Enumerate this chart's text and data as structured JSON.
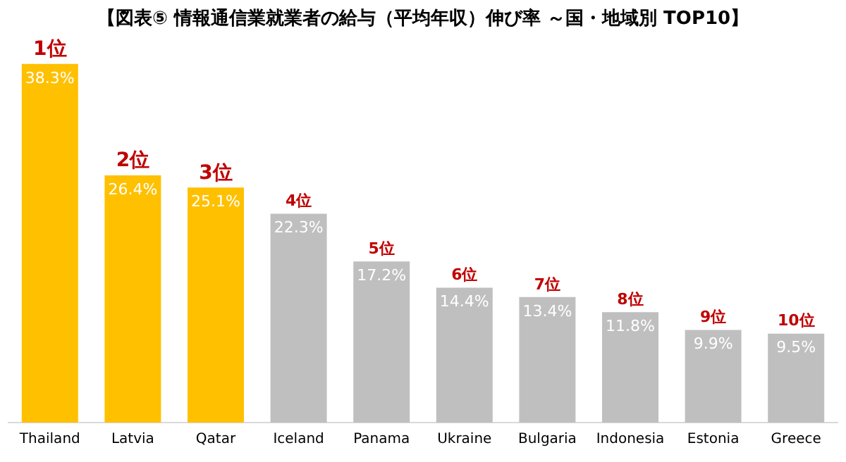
{
  "chart_data": {
    "type": "bar",
    "title": "【図表⑤ 情報通信業就業者の給与（平均年収）伸び率 ～国・地域別 TOP10】",
    "categories": [
      "Thailand",
      "Latvia",
      "Qatar",
      "Iceland",
      "Panama",
      "Ukraine",
      "Bulgaria",
      "Indonesia",
      "Estonia",
      "Greece"
    ],
    "values": [
      38.3,
      26.4,
      25.1,
      22.3,
      17.2,
      14.4,
      13.4,
      11.8,
      9.9,
      9.5
    ],
    "colors": [
      "#ffc000",
      "#ffc000",
      "#ffc000",
      "#bfbfbf",
      "#bfbfbf",
      "#bfbfbf",
      "#bfbfbf",
      "#bfbfbf",
      "#bfbfbf",
      "#bfbfbf"
    ],
    "value_labels": [
      "38.3%",
      "26.4%",
      "25.1%",
      "22.3%",
      "17.2%",
      "14.4%",
      "13.4%",
      "11.8%",
      "9.9%",
      "9.5%"
    ],
    "annotations": [
      {
        "text": "1位",
        "x": "Thailand",
        "y": 38.3
      },
      {
        "text": "2位",
        "x": "Latvia",
        "y": 26.4
      },
      {
        "text": "3位",
        "x": "Qatar",
        "y": 25.1
      },
      {
        "text": "4位",
        "x": "Iceland",
        "y": 22.3
      },
      {
        "text": "5位",
        "x": "Panama",
        "y": 17.2
      },
      {
        "text": "6位",
        "x": "Ukraine",
        "y": 14.4
      },
      {
        "text": "7位",
        "x": "Bulgaria",
        "y": 13.4
      },
      {
        "text": "8位",
        "x": "Indonesia",
        "y": 11.8
      },
      {
        "text": "9位",
        "x": "Estonia",
        "y": 9.9
      },
      {
        "text": "10位",
        "x": "Greece",
        "y": 9.5
      }
    ],
    "grid": false,
    "legend": false
  }
}
